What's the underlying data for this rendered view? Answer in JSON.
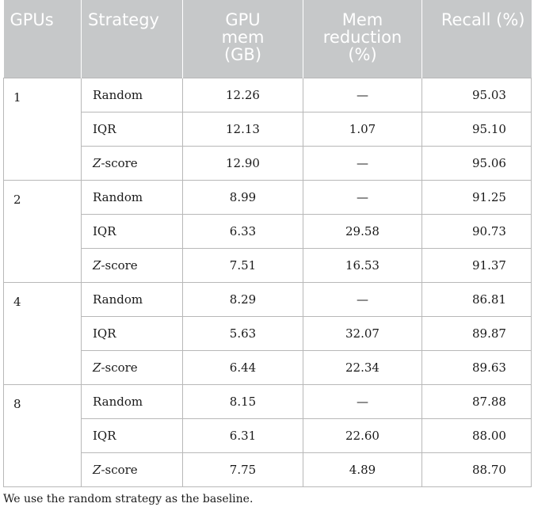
{
  "table": {
    "headers": [
      "GPUs",
      "Strategy",
      "GPU mem (GB)",
      "Mem reduction (%)",
      "Recall (%)"
    ],
    "groups": [
      {
        "gpus": "1",
        "rows": [
          {
            "strategy_prefix": "",
            "strategy_z": "",
            "strategy": "Random",
            "mem": "12.26",
            "reduction": "—",
            "recall": "95.03"
          },
          {
            "strategy_prefix": "",
            "strategy_z": "",
            "strategy": "IQR",
            "mem": "12.13",
            "reduction": "1.07",
            "recall": "95.10"
          },
          {
            "strategy_prefix": "",
            "strategy_z": "Z",
            "strategy": "-score",
            "mem": "12.90",
            "reduction": "—",
            "recall": "95.06"
          }
        ]
      },
      {
        "gpus": "2",
        "rows": [
          {
            "strategy_prefix": "",
            "strategy_z": "",
            "strategy": "Random",
            "mem": "8.99",
            "reduction": "—",
            "recall": "91.25"
          },
          {
            "strategy_prefix": "",
            "strategy_z": "",
            "strategy": "IQR",
            "mem": "6.33",
            "reduction": "29.58",
            "recall": "90.73"
          },
          {
            "strategy_prefix": "",
            "strategy_z": "Z",
            "strategy": "-score",
            "mem": "7.51",
            "reduction": "16.53",
            "recall": "91.37"
          }
        ]
      },
      {
        "gpus": "4",
        "rows": [
          {
            "strategy_prefix": "",
            "strategy_z": "",
            "strategy": "Random",
            "mem": "8.29",
            "reduction": "—",
            "recall": "86.81"
          },
          {
            "strategy_prefix": "",
            "strategy_z": "",
            "strategy": "IQR",
            "mem": "5.63",
            "reduction": "32.07",
            "recall": "89.87"
          },
          {
            "strategy_prefix": "",
            "strategy_z": "Z",
            "strategy": "-score",
            "mem": "6.44",
            "reduction": "22.34",
            "recall": "89.63"
          }
        ]
      },
      {
        "gpus": "8",
        "rows": [
          {
            "strategy_prefix": "",
            "strategy_z": "",
            "strategy": "Random",
            "mem": "8.15",
            "reduction": "—",
            "recall": "87.88"
          },
          {
            "strategy_prefix": "",
            "strategy_z": "",
            "strategy": "IQR",
            "mem": "6.31",
            "reduction": "22.60",
            "recall": "88.00"
          },
          {
            "strategy_prefix": "",
            "strategy_z": "Z",
            "strategy": "-score",
            "mem": "7.75",
            "reduction": "4.89",
            "recall": "88.70"
          }
        ]
      }
    ]
  },
  "footnote": "We use the random strategy as the baseline."
}
